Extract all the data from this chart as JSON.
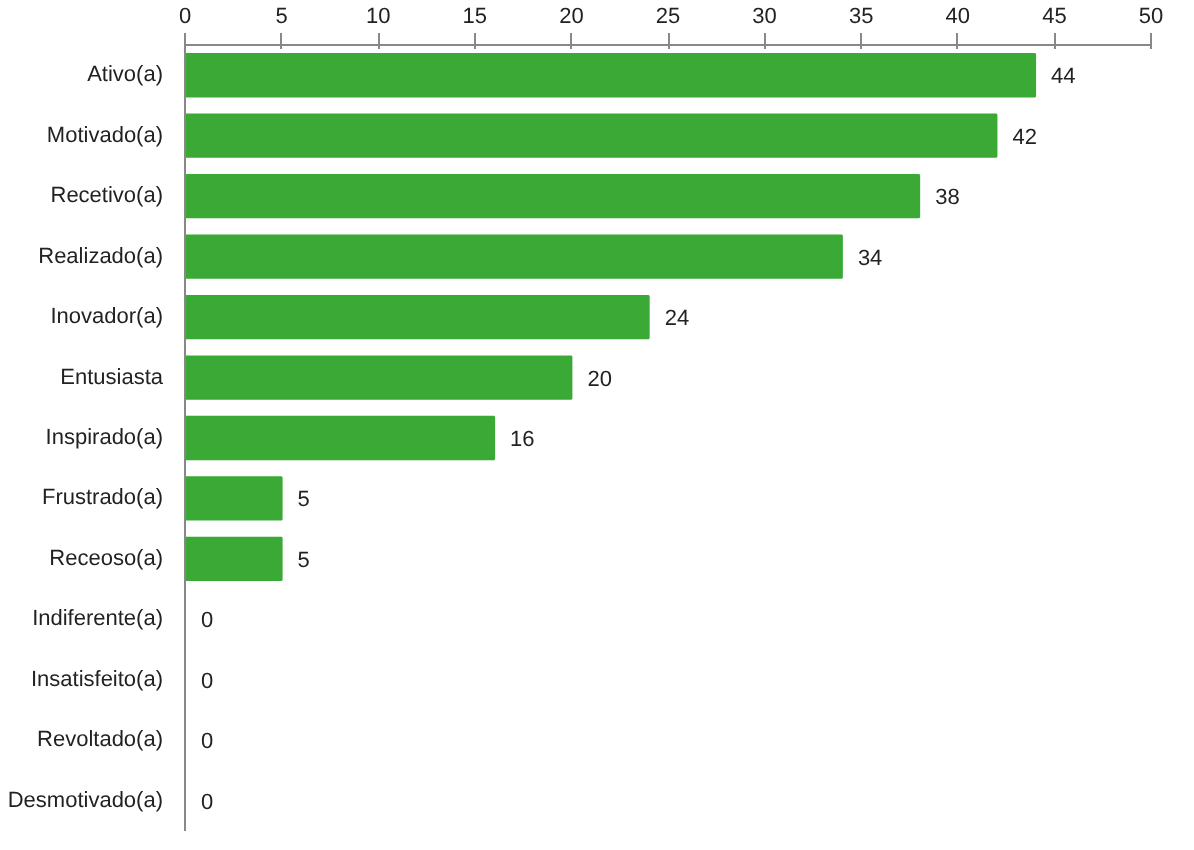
{
  "chart_data": {
    "type": "bar",
    "orientation": "horizontal",
    "categories": [
      "Ativo(a)",
      "Motivado(a)",
      "Recetivo(a)",
      "Realizado(a)",
      "Inovador(a)",
      "Entusiasta",
      "Inspirado(a)",
      "Frustrado(a)",
      "Receoso(a)",
      "Indiferente(a)",
      "Insatisfeito(a)",
      "Revoltado(a)",
      "Desmotivado(a)"
    ],
    "values": [
      44,
      42,
      38,
      34,
      24,
      20,
      16,
      5,
      5,
      0,
      0,
      0,
      0
    ],
    "color": "#3aa935",
    "xlim": [
      0,
      50
    ],
    "xticks": [
      0,
      5,
      10,
      15,
      20,
      25,
      30,
      35,
      40,
      45,
      50
    ],
    "data_labels": true
  }
}
